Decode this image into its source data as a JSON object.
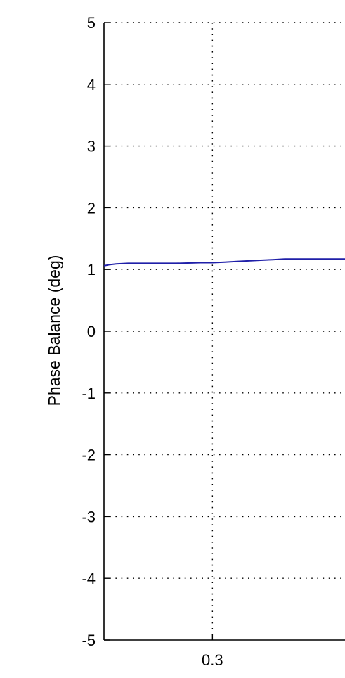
{
  "chart_data": {
    "type": "line",
    "ylabel": "Phase Balance (deg)",
    "xlabel": "",
    "ylim": [
      -5,
      5
    ],
    "xlim": [
      0.21,
      0.41
    ],
    "y_ticks": [
      5,
      4,
      3,
      2,
      1,
      0,
      -1,
      -2,
      -3,
      -4,
      -5
    ],
    "y_tick_labels": [
      "5",
      "4",
      "3",
      "2",
      "1",
      "0",
      "-1",
      "-2",
      "-3",
      "-4",
      "-5"
    ],
    "x_ticks": [
      0.3
    ],
    "x_tick_labels": [
      "0.3"
    ],
    "grid": true,
    "grid_style": "dotted",
    "series": [
      {
        "color": "#1f1fa8",
        "x": [
          0.21,
          0.215,
          0.22,
          0.23,
          0.25,
          0.27,
          0.29,
          0.3,
          0.31,
          0.32,
          0.33,
          0.34,
          0.35,
          0.36,
          0.37,
          0.38,
          0.39,
          0.4,
          0.41
        ],
        "y": [
          1.06,
          1.08,
          1.09,
          1.1,
          1.1,
          1.1,
          1.11,
          1.11,
          1.12,
          1.13,
          1.14,
          1.15,
          1.16,
          1.17,
          1.17,
          1.17,
          1.17,
          1.17,
          1.17
        ]
      }
    ]
  }
}
